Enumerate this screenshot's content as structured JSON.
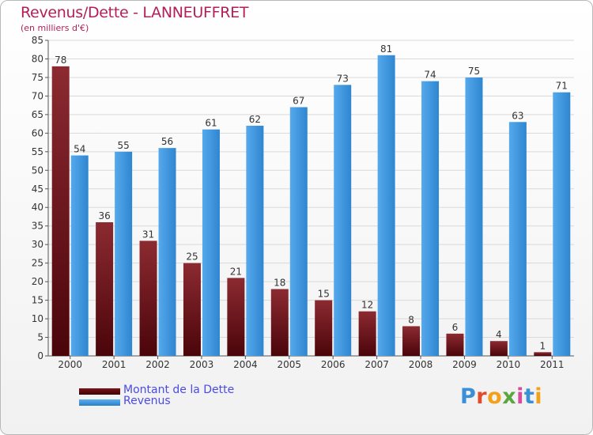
{
  "title": "Revenus/Dette - LANNEUFFRET",
  "subtitle": "(en milliers d'€)",
  "logo_text": "Proxiti",
  "legend": [
    {
      "label": "Montant de la Dette",
      "color": "#6b0d12"
    },
    {
      "label": "Revenus",
      "color": "#3f95dc"
    }
  ],
  "chart_data": {
    "type": "bar",
    "categories": [
      "2000",
      "2001",
      "2002",
      "2003",
      "2004",
      "2005",
      "2006",
      "2007",
      "2008",
      "2009",
      "2010",
      "2011"
    ],
    "series": [
      {
        "name": "Montant de la Dette",
        "values": [
          78,
          36,
          31,
          25,
          21,
          18,
          15,
          12,
          8,
          6,
          4,
          1
        ],
        "color": "#8a1f26"
      },
      {
        "name": "Revenus",
        "values": [
          54,
          55,
          56,
          61,
          62,
          67,
          73,
          81,
          74,
          75,
          63,
          71
        ],
        "color": "#4aa0e6"
      }
    ],
    "ylim": [
      0,
      85
    ],
    "yticks": [
      0,
      5,
      10,
      15,
      20,
      25,
      30,
      35,
      40,
      45,
      50,
      55,
      60,
      65,
      70,
      75,
      80,
      85
    ],
    "grid": true,
    "legend_position": "bottom-left"
  }
}
